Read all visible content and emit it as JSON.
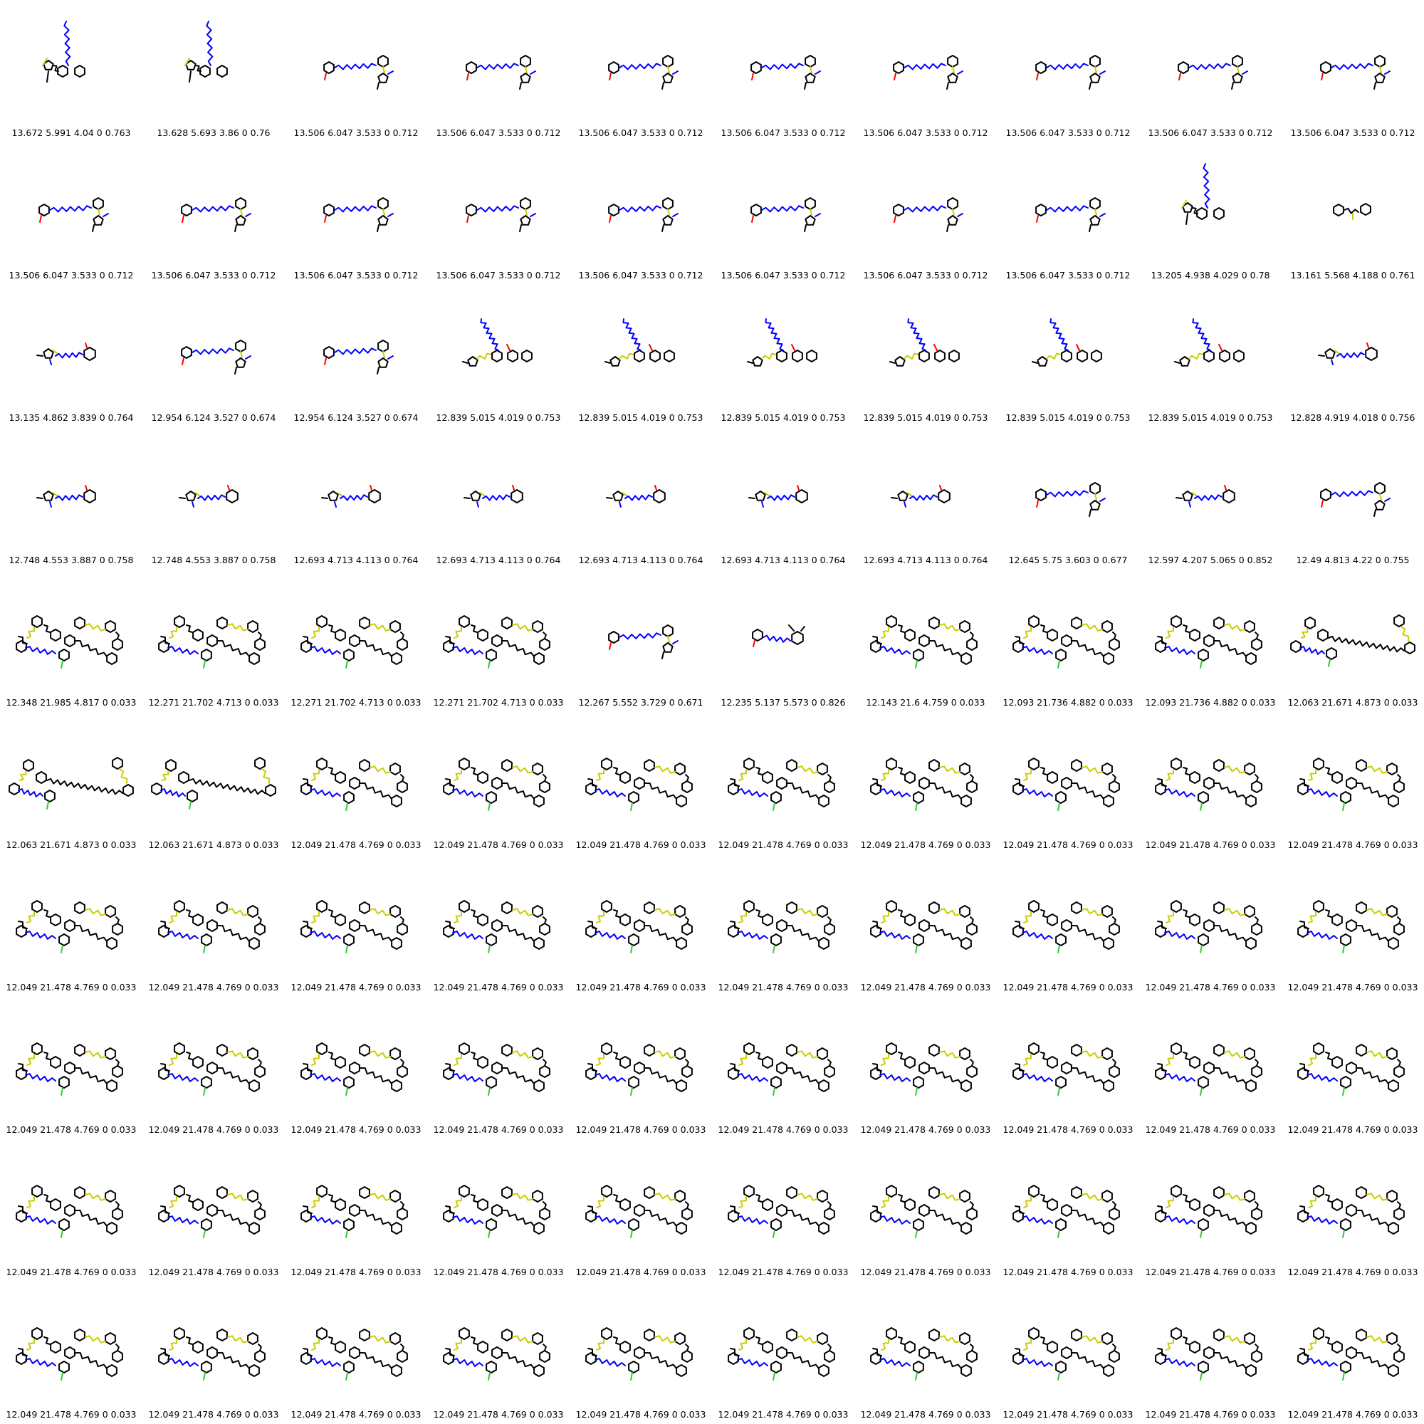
{
  "grid": {
    "columns": 10,
    "rows": 10,
    "colors": {
      "carbon": "#000000",
      "nitrogen": "#0000ff",
      "oxygen": "#ff0000",
      "sulfur": "#cccc00",
      "halogen": "#33cc33"
    },
    "cells": [
      {
        "motif": "small-a",
        "caption": "13.672 5.991 4.04 0 0.763"
      },
      {
        "motif": "small-a",
        "caption": "13.628 5.693 3.86 0 0.76"
      },
      {
        "motif": "small-b",
        "caption": "13.506 6.047 3.533 0 0.712"
      },
      {
        "motif": "small-b",
        "caption": "13.506 6.047 3.533 0 0.712"
      },
      {
        "motif": "small-b",
        "caption": "13.506 6.047 3.533 0 0.712"
      },
      {
        "motif": "small-b",
        "caption": "13.506 6.047 3.533 0 0.712"
      },
      {
        "motif": "small-b",
        "caption": "13.506 6.047 3.533 0 0.712"
      },
      {
        "motif": "small-b",
        "caption": "13.506 6.047 3.533 0 0.712"
      },
      {
        "motif": "small-b",
        "caption": "13.506 6.047 3.533 0 0.712"
      },
      {
        "motif": "small-b",
        "caption": "13.506 6.047 3.533 0 0.712"
      },
      {
        "motif": "small-b",
        "caption": "13.506 6.047 3.533 0 0.712"
      },
      {
        "motif": "small-b",
        "caption": "13.506 6.047 3.533 0 0.712"
      },
      {
        "motif": "small-b",
        "caption": "13.506 6.047 3.533 0 0.712"
      },
      {
        "motif": "small-b",
        "caption": "13.506 6.047 3.533 0 0.712"
      },
      {
        "motif": "small-b",
        "caption": "13.506 6.047 3.533 0 0.712"
      },
      {
        "motif": "small-b",
        "caption": "13.506 6.047 3.533 0 0.712"
      },
      {
        "motif": "small-b",
        "caption": "13.506 6.047 3.533 0 0.712"
      },
      {
        "motif": "small-b",
        "caption": "13.506 6.047 3.533 0 0.712"
      },
      {
        "motif": "small-a",
        "caption": "13.205 4.938 4.029 0 0.78"
      },
      {
        "motif": "tiny",
        "caption": "13.161 5.568 4.188 0 0.761"
      },
      {
        "motif": "small-c",
        "caption": "13.135 4.862 3.839 0 0.764"
      },
      {
        "motif": "small-b",
        "caption": "12.954 6.124 3.527 0 0.674"
      },
      {
        "motif": "small-b",
        "caption": "12.954 6.124 3.527 0 0.674"
      },
      {
        "motif": "small-d",
        "caption": "12.839 5.015 4.019 0 0.753"
      },
      {
        "motif": "small-d",
        "caption": "12.839 5.015 4.019 0 0.753"
      },
      {
        "motif": "small-d",
        "caption": "12.839 5.015 4.019 0 0.753"
      },
      {
        "motif": "small-d",
        "caption": "12.839 5.015 4.019 0 0.753"
      },
      {
        "motif": "small-d",
        "caption": "12.839 5.015 4.019 0 0.753"
      },
      {
        "motif": "small-d",
        "caption": "12.839 5.015 4.019 0 0.753"
      },
      {
        "motif": "small-c",
        "caption": "12.828 4.919 4.018 0 0.756"
      },
      {
        "motif": "small-c",
        "caption": "12.748 4.553 3.887 0 0.758"
      },
      {
        "motif": "small-c",
        "caption": "12.748 4.553 3.887 0 0.758"
      },
      {
        "motif": "small-c",
        "caption": "12.693 4.713 4.113 0 0.764"
      },
      {
        "motif": "small-c",
        "caption": "12.693 4.713 4.113 0 0.764"
      },
      {
        "motif": "small-c",
        "caption": "12.693 4.713 4.113 0 0.764"
      },
      {
        "motif": "small-c",
        "caption": "12.693 4.713 4.113 0 0.764"
      },
      {
        "motif": "small-c",
        "caption": "12.693 4.713 4.113 0 0.764"
      },
      {
        "motif": "small-b",
        "caption": "12.645 5.75 3.603 0 0.677"
      },
      {
        "motif": "small-c",
        "caption": "12.597 4.207 5.065 0 0.852"
      },
      {
        "motif": "small-b",
        "caption": "12.49 4.813 4.22 0 0.755"
      },
      {
        "motif": "large",
        "caption": "12.348 21.985 4.817 0 0.033"
      },
      {
        "motif": "large",
        "caption": "12.271 21.702 4.713 0 0.033"
      },
      {
        "motif": "large",
        "caption": "12.271 21.702 4.713 0 0.033"
      },
      {
        "motif": "large",
        "caption": "12.271 21.702 4.713 0 0.033"
      },
      {
        "motif": "small-b",
        "caption": "12.267 5.552 3.729 0 0.671"
      },
      {
        "motif": "small-e",
        "caption": "12.235 5.137 5.573 0 0.826"
      },
      {
        "motif": "large",
        "caption": "12.143 21.6 4.759 0 0.033"
      },
      {
        "motif": "large",
        "caption": "12.093 21.736 4.882 0 0.033"
      },
      {
        "motif": "large",
        "caption": "12.093 21.736 4.882 0 0.033"
      },
      {
        "motif": "large-long",
        "caption": "12.063 21.671 4.873 0 0.033"
      },
      {
        "motif": "large-long",
        "caption": "12.063 21.671 4.873 0 0.033"
      },
      {
        "motif": "large-long",
        "caption": "12.063 21.671 4.873 0 0.033"
      },
      {
        "motif": "large",
        "caption": "12.049 21.478 4.769 0 0.033"
      },
      {
        "motif": "large",
        "caption": "12.049 21.478 4.769 0 0.033"
      },
      {
        "motif": "large",
        "caption": "12.049 21.478 4.769 0 0.033"
      },
      {
        "motif": "large",
        "caption": "12.049 21.478 4.769 0 0.033"
      },
      {
        "motif": "large",
        "caption": "12.049 21.478 4.769 0 0.033"
      },
      {
        "motif": "large",
        "caption": "12.049 21.478 4.769 0 0.033"
      },
      {
        "motif": "large",
        "caption": "12.049 21.478 4.769 0 0.033"
      },
      {
        "motif": "large",
        "caption": "12.049 21.478 4.769 0 0.033"
      },
      {
        "motif": "large",
        "caption": "12.049 21.478 4.769 0 0.033"
      },
      {
        "motif": "large",
        "caption": "12.049 21.478 4.769 0 0.033"
      },
      {
        "motif": "large",
        "caption": "12.049 21.478 4.769 0 0.033"
      },
      {
        "motif": "large",
        "caption": "12.049 21.478 4.769 0 0.033"
      },
      {
        "motif": "large",
        "caption": "12.049 21.478 4.769 0 0.033"
      },
      {
        "motif": "large",
        "caption": "12.049 21.478 4.769 0 0.033"
      },
      {
        "motif": "large",
        "caption": "12.049 21.478 4.769 0 0.033"
      },
      {
        "motif": "large",
        "caption": "12.049 21.478 4.769 0 0.033"
      },
      {
        "motif": "large",
        "caption": "12.049 21.478 4.769 0 0.033"
      },
      {
        "motif": "large",
        "caption": "12.049 21.478 4.769 0 0.033"
      },
      {
        "motif": "large",
        "caption": "12.049 21.478 4.769 0 0.033"
      },
      {
        "motif": "large",
        "caption": "12.049 21.478 4.769 0 0.033"
      },
      {
        "motif": "large",
        "caption": "12.049 21.478 4.769 0 0.033"
      },
      {
        "motif": "large",
        "caption": "12.049 21.478 4.769 0 0.033"
      },
      {
        "motif": "large",
        "caption": "12.049 21.478 4.769 0 0.033"
      },
      {
        "motif": "large",
        "caption": "12.049 21.478 4.769 0 0.033"
      },
      {
        "motif": "large",
        "caption": "12.049 21.478 4.769 0 0.033"
      },
      {
        "motif": "large",
        "caption": "12.049 21.478 4.769 0 0.033"
      },
      {
        "motif": "large",
        "caption": "12.049 21.478 4.769 0 0.033"
      },
      {
        "motif": "large",
        "caption": "12.049 21.478 4.769 0 0.033"
      },
      {
        "motif": "large",
        "caption": "12.049 21.478 4.769 0 0.033"
      },
      {
        "motif": "large",
        "caption": "12.049 21.478 4.769 0 0.033"
      },
      {
        "motif": "large",
        "caption": "12.049 21.478 4.769 0 0.033"
      },
      {
        "motif": "large",
        "caption": "12.049 21.478 4.769 0 0.033"
      },
      {
        "motif": "large",
        "caption": "12.049 21.478 4.769 0 0.033"
      },
      {
        "motif": "large",
        "caption": "12.049 21.478 4.769 0 0.033"
      },
      {
        "motif": "large",
        "caption": "12.049 21.478 4.769 0 0.033"
      },
      {
        "motif": "large",
        "caption": "12.049 21.478 4.769 0 0.033"
      },
      {
        "motif": "large",
        "caption": "12.049 21.478 4.769 0 0.033"
      },
      {
        "motif": "large",
        "caption": "12.049 21.478 4.769 0 0.033"
      },
      {
        "motif": "large",
        "caption": "12.049 21.478 4.769 0 0.033"
      },
      {
        "motif": "large",
        "caption": "12.049 21.478 4.769 0 0.033"
      },
      {
        "motif": "large",
        "caption": "12.049 21.478 4.769 0 0.033"
      },
      {
        "motif": "large",
        "caption": "12.049 21.478 4.769 0 0.033"
      },
      {
        "motif": "large",
        "caption": "12.049 21.478 4.769 0 0.033"
      },
      {
        "motif": "large",
        "caption": "12.049 21.478 4.769 0 0.033"
      },
      {
        "motif": "large",
        "caption": "12.049 21.478 4.769 0 0.033"
      },
      {
        "motif": "large",
        "caption": "12.049 21.478 4.769 0 0.033"
      },
      {
        "motif": "large",
        "caption": "12.049 21.478 4.769 0 0.033"
      },
      {
        "motif": "large",
        "caption": "12.049 21.478 4.769 0 0.033"
      }
    ]
  }
}
